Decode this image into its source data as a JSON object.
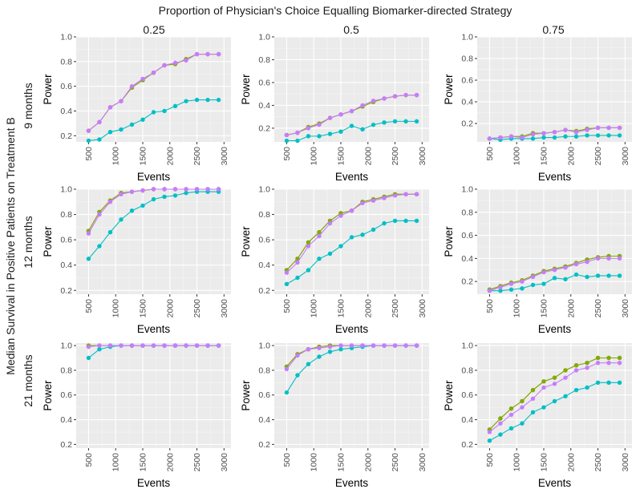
{
  "figure": {
    "title": "Proportion of Physician's Choice Equalling Biomarker-directed Strategy",
    "row_axis_label": "Median Survival in Positive Patients on Treatment B",
    "col_labels": [
      "0.25",
      "0.5",
      "0.75"
    ],
    "row_labels": [
      "9 months",
      "12 months",
      "21 months"
    ]
  },
  "chart_data": {
    "type": "line",
    "layout": "facet-grid 3x3",
    "title": "Proportion of Physician's Choice Equalling Biomarker-directed Strategy",
    "xlabel": "Events",
    "ylabel": "Power",
    "x": [
      500,
      700,
      900,
      1100,
      1300,
      1500,
      1700,
      1900,
      2100,
      2300,
      2500,
      2700,
      2900
    ],
    "xticks": [
      500,
      1000,
      1500,
      2000,
      2500,
      3000
    ],
    "xlim": [
      400,
      3000
    ],
    "ylim": [
      0.2,
      1.0
    ],
    "yticks": [
      0.2,
      0.4,
      0.6,
      0.8,
      1.0
    ],
    "grid": true,
    "legend": "none",
    "series_colors": [
      "#F8766D",
      "#7CAE00",
      "#00BFC4",
      "#C77CFF"
    ],
    "panels": [
      {
        "row": "9 months",
        "col": "0.25",
        "ylim": [
          0.15,
          1.0
        ],
        "series": [
          {
            "values": [
              0.24,
              0.31,
              0.43,
              0.48,
              0.59,
              0.65,
              0.71,
              0.77,
              0.78,
              0.82,
              0.86,
              0.86,
              0.86
            ]
          },
          {
            "values": [
              0.24,
              0.31,
              0.43,
              0.48,
              0.59,
              0.65,
              0.71,
              0.77,
              0.78,
              0.82,
              0.86,
              0.86,
              0.86
            ]
          },
          {
            "values": [
              0.16,
              0.17,
              0.23,
              0.25,
              0.29,
              0.33,
              0.39,
              0.4,
              0.44,
              0.48,
              0.49,
              0.49,
              0.49
            ]
          },
          {
            "values": [
              0.24,
              0.31,
              0.43,
              0.48,
              0.6,
              0.66,
              0.71,
              0.77,
              0.79,
              0.81,
              0.86,
              0.86,
              0.86
            ]
          }
        ]
      },
      {
        "row": "9 months",
        "col": "0.5",
        "ylim": [
          0.08,
          1.0
        ],
        "series": [
          {
            "values": [
              0.14,
              0.16,
              0.21,
              0.24,
              0.29,
              0.32,
              0.35,
              0.39,
              0.43,
              0.46,
              0.48,
              0.49,
              0.49
            ]
          },
          {
            "values": [
              0.14,
              0.16,
              0.21,
              0.24,
              0.29,
              0.32,
              0.35,
              0.39,
              0.43,
              0.46,
              0.48,
              0.49,
              0.49
            ]
          },
          {
            "values": [
              0.09,
              0.09,
              0.13,
              0.13,
              0.15,
              0.17,
              0.22,
              0.19,
              0.23,
              0.25,
              0.26,
              0.26,
              0.26
            ]
          },
          {
            "values": [
              0.14,
              0.16,
              0.2,
              0.23,
              0.29,
              0.32,
              0.35,
              0.4,
              0.44,
              0.46,
              0.48,
              0.49,
              0.49
            ]
          }
        ]
      },
      {
        "row": "9 months",
        "col": "0.75",
        "ylim": [
          0.03,
          1.0
        ],
        "series": [
          {
            "values": [
              0.06,
              0.07,
              0.08,
              0.08,
              0.11,
              0.11,
              0.12,
              0.14,
              0.13,
              0.15,
              0.16,
              0.16,
              0.16
            ]
          },
          {
            "values": [
              0.06,
              0.07,
              0.08,
              0.08,
              0.11,
              0.11,
              0.12,
              0.14,
              0.13,
              0.15,
              0.16,
              0.16,
              0.16
            ]
          },
          {
            "values": [
              0.06,
              0.05,
              0.06,
              0.06,
              0.06,
              0.07,
              0.07,
              0.08,
              0.08,
              0.09,
              0.09,
              0.09,
              0.09
            ]
          },
          {
            "values": [
              0.06,
              0.07,
              0.08,
              0.07,
              0.1,
              0.11,
              0.12,
              0.14,
              0.12,
              0.14,
              0.16,
              0.16,
              0.16
            ]
          }
        ]
      },
      {
        "row": "12 months",
        "col": "0.25",
        "ylim": [
          0.17,
          1.0
        ],
        "series": [
          {
            "values": [
              0.67,
              0.82,
              0.91,
              0.97,
              0.98,
              0.99,
              1.0,
              1.0,
              1.0,
              1.0,
              1.0,
              1.0,
              1.0
            ]
          },
          {
            "values": [
              0.67,
              0.82,
              0.91,
              0.97,
              0.98,
              0.99,
              1.0,
              1.0,
              1.0,
              1.0,
              1.0,
              1.0,
              1.0
            ]
          },
          {
            "values": [
              0.45,
              0.55,
              0.66,
              0.76,
              0.83,
              0.87,
              0.92,
              0.94,
              0.95,
              0.97,
              0.98,
              0.98,
              0.98
            ]
          },
          {
            "values": [
              0.65,
              0.8,
              0.9,
              0.96,
              0.98,
              0.99,
              1.0,
              1.0,
              1.0,
              1.0,
              1.0,
              1.0,
              1.0
            ]
          }
        ]
      },
      {
        "row": "12 months",
        "col": "0.5",
        "ylim": [
          0.17,
          1.0
        ],
        "series": [
          {
            "values": [
              0.36,
              0.45,
              0.58,
              0.66,
              0.75,
              0.81,
              0.83,
              0.9,
              0.92,
              0.94,
              0.96,
              0.96,
              0.96
            ]
          },
          {
            "values": [
              0.36,
              0.45,
              0.58,
              0.66,
              0.75,
              0.81,
              0.83,
              0.9,
              0.92,
              0.94,
              0.96,
              0.96,
              0.96
            ]
          },
          {
            "values": [
              0.25,
              0.3,
              0.36,
              0.45,
              0.49,
              0.55,
              0.62,
              0.64,
              0.68,
              0.73,
              0.75,
              0.75,
              0.75
            ]
          },
          {
            "values": [
              0.34,
              0.42,
              0.55,
              0.63,
              0.73,
              0.79,
              0.83,
              0.89,
              0.91,
              0.93,
              0.95,
              0.96,
              0.96
            ]
          }
        ]
      },
      {
        "row": "12 months",
        "col": "0.75",
        "ylim": [
          0.09,
          1.0
        ],
        "series": [
          {
            "values": [
              0.13,
              0.16,
              0.19,
              0.21,
              0.25,
              0.29,
              0.31,
              0.33,
              0.36,
              0.39,
              0.41,
              0.42,
              0.42
            ]
          },
          {
            "values": [
              0.13,
              0.16,
              0.19,
              0.21,
              0.25,
              0.29,
              0.31,
              0.33,
              0.36,
              0.39,
              0.41,
              0.42,
              0.42
            ]
          },
          {
            "values": [
              0.12,
              0.12,
              0.13,
              0.14,
              0.17,
              0.18,
              0.23,
              0.22,
              0.26,
              0.24,
              0.25,
              0.25,
              0.25
            ]
          },
          {
            "values": [
              0.12,
              0.15,
              0.18,
              0.2,
              0.24,
              0.28,
              0.3,
              0.32,
              0.35,
              0.37,
              0.4,
              0.4,
              0.4
            ]
          }
        ]
      },
      {
        "row": "21 months",
        "col": "0.25",
        "ylim": [
          0.17,
          1.02
        ],
        "series": [
          {
            "values": [
              1.0,
              1.0,
              1.0,
              1.0,
              1.0,
              1.0,
              1.0,
              1.0,
              1.0,
              1.0,
              1.0,
              1.0,
              1.0
            ]
          },
          {
            "values": [
              1.0,
              1.0,
              1.0,
              1.0,
              1.0,
              1.0,
              1.0,
              1.0,
              1.0,
              1.0,
              1.0,
              1.0,
              1.0
            ]
          },
          {
            "values": [
              0.9,
              0.97,
              0.99,
              1.0,
              1.0,
              1.0,
              1.0,
              1.0,
              1.0,
              1.0,
              1.0,
              1.0,
              1.0
            ]
          },
          {
            "values": [
              0.99,
              1.0,
              1.0,
              1.0,
              1.0,
              1.0,
              1.0,
              1.0,
              1.0,
              1.0,
              1.0,
              1.0,
              1.0
            ]
          }
        ]
      },
      {
        "row": "21 months",
        "col": "0.5",
        "ylim": [
          0.17,
          1.02
        ],
        "series": [
          {
            "values": [
              0.83,
              0.93,
              0.97,
              0.99,
              1.0,
              1.0,
              1.0,
              1.0,
              1.0,
              1.0,
              1.0,
              1.0,
              1.0
            ]
          },
          {
            "values": [
              0.83,
              0.93,
              0.97,
              0.99,
              1.0,
              1.0,
              1.0,
              1.0,
              1.0,
              1.0,
              1.0,
              1.0,
              1.0
            ]
          },
          {
            "values": [
              0.62,
              0.76,
              0.85,
              0.91,
              0.95,
              0.97,
              0.98,
              0.99,
              1.0,
              1.0,
              1.0,
              1.0,
              1.0
            ]
          },
          {
            "values": [
              0.81,
              0.92,
              0.97,
              0.98,
              0.99,
              1.0,
              1.0,
              1.0,
              1.0,
              1.0,
              1.0,
              1.0,
              1.0
            ]
          }
        ]
      },
      {
        "row": "21 months",
        "col": "0.75",
        "ylim": [
          0.17,
          1.02
        ],
        "series": [
          {
            "values": [
              0.32,
              0.41,
              0.49,
              0.55,
              0.64,
              0.71,
              0.74,
              0.8,
              0.84,
              0.86,
              0.9,
              0.9,
              0.9
            ]
          },
          {
            "values": [
              0.32,
              0.41,
              0.49,
              0.55,
              0.64,
              0.71,
              0.74,
              0.8,
              0.84,
              0.86,
              0.9,
              0.9,
              0.9
            ]
          },
          {
            "values": [
              0.23,
              0.28,
              0.33,
              0.37,
              0.46,
              0.5,
              0.55,
              0.59,
              0.64,
              0.66,
              0.7,
              0.7,
              0.7
            ]
          },
          {
            "values": [
              0.3,
              0.37,
              0.44,
              0.5,
              0.57,
              0.66,
              0.69,
              0.74,
              0.8,
              0.82,
              0.86,
              0.86,
              0.86
            ]
          }
        ]
      }
    ]
  }
}
